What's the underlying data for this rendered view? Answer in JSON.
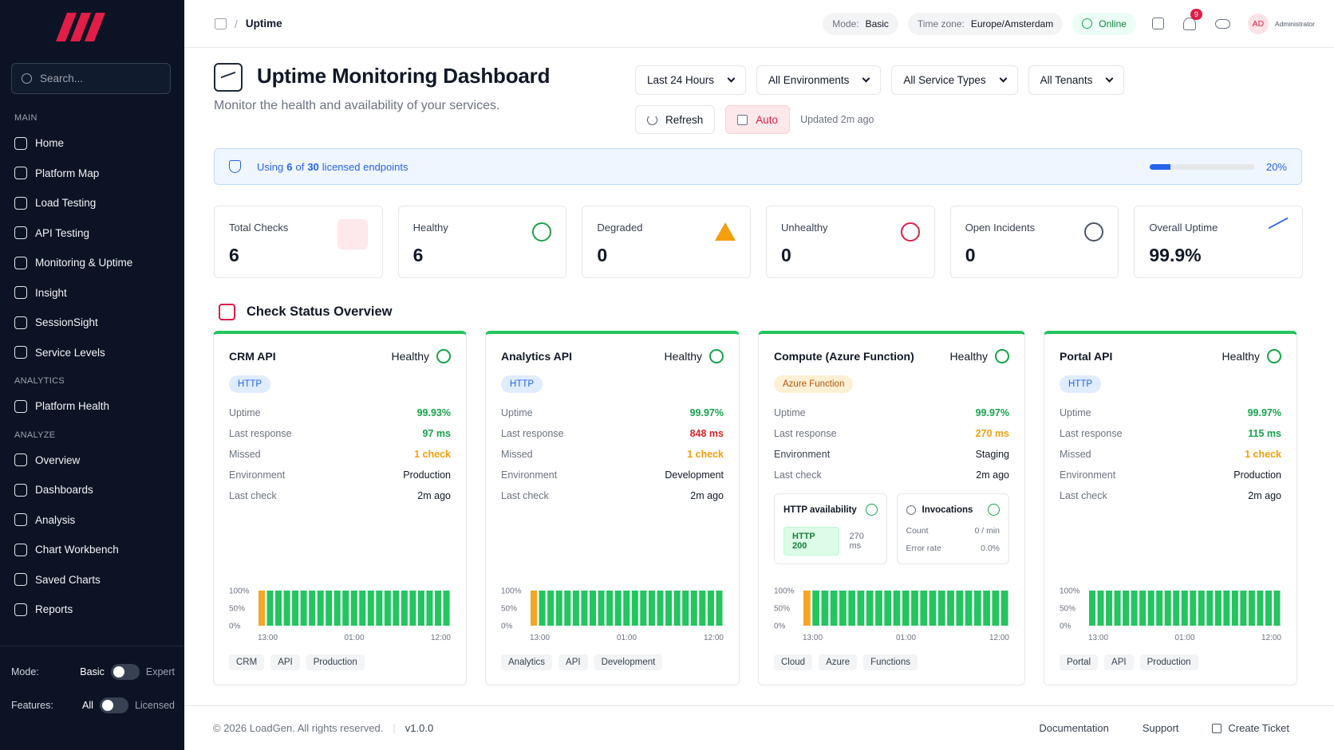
{
  "sidebar": {
    "search_placeholder": "Search...",
    "sections": [
      {
        "title": "MAIN",
        "items": [
          "Home",
          "Platform Map",
          "Load Testing",
          "API Testing",
          "Monitoring & Uptime",
          "Insight",
          "SessionSight",
          "Service Levels"
        ]
      },
      {
        "title": "ANALYTICS",
        "items": [
          "Platform Health"
        ]
      },
      {
        "title": "ANALYZE",
        "items": [
          "Overview",
          "Dashboards",
          "Analysis",
          "Chart Workbench",
          "Saved Charts",
          "Reports"
        ]
      }
    ],
    "toggles": [
      {
        "label": "Mode:",
        "left": "Basic",
        "right": "Expert"
      },
      {
        "label": "Features:",
        "left": "All",
        "right": "Licensed"
      }
    ]
  },
  "header": {
    "breadcrumb": "Uptime",
    "mode_label": "Mode:",
    "mode": "Basic",
    "tz_label": "Time zone:",
    "tz": "Europe/Amsterdam",
    "status": "Online",
    "notifications": "9",
    "avatar": "AD",
    "user": "Administrator"
  },
  "page": {
    "title": "Uptime Monitoring Dashboard",
    "subtitle": "Monitor the health and availability of your services.",
    "filters": [
      "Last 24 Hours",
      "All Environments",
      "All Service Types",
      "All Tenants"
    ],
    "refresh": "Refresh",
    "auto": "Auto",
    "updated": "Updated 2m ago"
  },
  "license": {
    "prefix": "Using",
    "used": "6",
    "middle": "of",
    "total": "30",
    "suffix": "licensed endpoints",
    "percent": 20,
    "percent_label": "20%"
  },
  "stats": [
    {
      "label": "Total Checks",
      "value": "6"
    },
    {
      "label": "Healthy",
      "value": "6"
    },
    {
      "label": "Degraded",
      "value": "0"
    },
    {
      "label": "Unhealthy",
      "value": "0"
    },
    {
      "label": "Open Incidents",
      "value": "0"
    },
    {
      "label": "Overall Uptime",
      "value": "99.9%"
    }
  ],
  "section_title": "Check Status Overview",
  "uptime_history": {
    "ylim": [
      0,
      100
    ],
    "yticks": [
      {
        "value": 100,
        "label": "100%"
      },
      {
        "value": 50,
        "label": "50%"
      },
      {
        "value": 0,
        "label": "0%"
      }
    ],
    "xlabels": [
      "13:00",
      "01:00",
      "12:00"
    ]
  },
  "checks": [
    {
      "name": "CRM API",
      "status": "Healthy",
      "type": "HTTP",
      "rows": [
        {
          "label": "Uptime",
          "value": "99.93%",
          "color": "#16a34a"
        },
        {
          "label": "Last response",
          "value": "97 ms",
          "color": "#16a34a"
        },
        {
          "label": "Missed",
          "value": "1 check",
          "color": "#f59e0b"
        },
        {
          "label": "Environment",
          "value": "Production",
          "color": "#111827"
        },
        {
          "label": "Last check",
          "value": "2m ago",
          "color": "#111827"
        }
      ],
      "history": {
        "values": [
          100,
          100,
          100,
          100,
          100,
          100,
          100,
          100,
          100,
          100,
          100,
          100,
          100,
          100,
          100,
          100,
          100,
          100,
          100,
          100,
          100,
          100,
          100
        ],
        "colors": [
          "#f5a623",
          "#22c55e",
          "#22c55e",
          "#22c55e",
          "#22c55e",
          "#22c55e",
          "#22c55e",
          "#22c55e",
          "#22c55e",
          "#22c55e",
          "#22c55e",
          "#22c55e",
          "#22c55e",
          "#22c55e",
          "#22c55e",
          "#22c55e",
          "#22c55e",
          "#22c55e",
          "#22c55e",
          "#22c55e",
          "#22c55e",
          "#22c55e",
          "#22c55e"
        ]
      },
      "tags": [
        "CRM",
        "API",
        "Production"
      ]
    },
    {
      "name": "Analytics API",
      "status": "Healthy",
      "type": "HTTP",
      "rows": [
        {
          "label": "Uptime",
          "value": "99.97%",
          "color": "#16a34a"
        },
        {
          "label": "Last response",
          "value": "848 ms",
          "color": "#dc2626"
        },
        {
          "label": "Missed",
          "value": "1 check",
          "color": "#f59e0b"
        },
        {
          "label": "Environment",
          "value": "Development",
          "color": "#111827"
        },
        {
          "label": "Last check",
          "value": "2m ago",
          "color": "#111827"
        }
      ],
      "history": {
        "values": [
          100,
          100,
          100,
          100,
          100,
          100,
          100,
          100,
          100,
          100,
          100,
          100,
          100,
          100,
          100,
          100,
          100,
          100,
          100,
          100,
          100,
          100,
          100
        ],
        "colors": [
          "#f5a623",
          "#22c55e",
          "#22c55e",
          "#22c55e",
          "#22c55e",
          "#22c55e",
          "#22c55e",
          "#22c55e",
          "#22c55e",
          "#22c55e",
          "#22c55e",
          "#22c55e",
          "#22c55e",
          "#22c55e",
          "#22c55e",
          "#22c55e",
          "#22c55e",
          "#22c55e",
          "#22c55e",
          "#22c55e",
          "#22c55e",
          "#22c55e",
          "#22c55e"
        ]
      },
      "tags": [
        "Analytics",
        "API",
        "Development"
      ]
    },
    {
      "name": "Compute (Azure Function)",
      "status": "Healthy",
      "type": "Azure Function",
      "rows": [
        {
          "label": "Uptime",
          "value": "99.97%",
          "color": "#16a34a"
        },
        {
          "label": "Last response",
          "value": "270 ms",
          "color": "#f59e0b"
        },
        {
          "label": "Environment",
          "value": "Staging",
          "color": "#111827"
        },
        {
          "label": "Last check",
          "value": "2m ago",
          "color": "#111827"
        }
      ],
      "panels": {
        "http": {
          "title": "HTTP availability",
          "code": "HTTP 200",
          "time": "270 ms"
        },
        "invocations": {
          "title": "Invocations",
          "rows": [
            {
              "label": "Count",
              "value": "0 / min"
            },
            {
              "label": "Error rate",
              "value": "0.0%"
            }
          ]
        }
      },
      "history": {
        "values": [
          100,
          100,
          100,
          100,
          100,
          100,
          100,
          100,
          100,
          100,
          100,
          100,
          100,
          100,
          100,
          100,
          100,
          100,
          100,
          100,
          100,
          100,
          100
        ],
        "colors": [
          "#f5a623",
          "#22c55e",
          "#22c55e",
          "#22c55e",
          "#22c55e",
          "#22c55e",
          "#22c55e",
          "#22c55e",
          "#22c55e",
          "#22c55e",
          "#22c55e",
          "#22c55e",
          "#22c55e",
          "#22c55e",
          "#22c55e",
          "#22c55e",
          "#22c55e",
          "#22c55e",
          "#22c55e",
          "#22c55e",
          "#22c55e",
          "#22c55e",
          "#22c55e"
        ]
      },
      "tags": [
        "Cloud",
        "Azure",
        "Functions"
      ]
    },
    {
      "name": "Portal API",
      "status": "Healthy",
      "type": "HTTP",
      "rows": [
        {
          "label": "Uptime",
          "value": "99.97%",
          "color": "#16a34a"
        },
        {
          "label": "Last response",
          "value": "115 ms",
          "color": "#16a34a"
        },
        {
          "label": "Missed",
          "value": "1 check",
          "color": "#f59e0b"
        },
        {
          "label": "Environment",
          "value": "Production",
          "color": "#111827"
        },
        {
          "label": "Last check",
          "value": "2m ago",
          "color": "#111827"
        }
      ],
      "history": {
        "values": [
          100,
          100,
          100,
          100,
          100,
          100,
          100,
          100,
          100,
          100,
          100,
          100,
          100,
          100,
          100,
          100,
          100,
          100,
          100,
          100,
          100,
          100,
          100
        ],
        "colors": [
          "#22c55e",
          "#22c55e",
          "#22c55e",
          "#22c55e",
          "#22c55e",
          "#22c55e",
          "#22c55e",
          "#22c55e",
          "#22c55e",
          "#22c55e",
          "#22c55e",
          "#22c55e",
          "#22c55e",
          "#22c55e",
          "#22c55e",
          "#22c55e",
          "#22c55e",
          "#22c55e",
          "#22c55e",
          "#22c55e",
          "#22c55e",
          "#22c55e",
          "#22c55e"
        ]
      },
      "tags": [
        "Portal",
        "API",
        "Production"
      ]
    }
  ],
  "footer": {
    "copyright": "© 2026 LoadGen. All rights reserved.",
    "version": "v1.0.0",
    "links": [
      "Documentation",
      "Support",
      "Create Ticket"
    ]
  }
}
